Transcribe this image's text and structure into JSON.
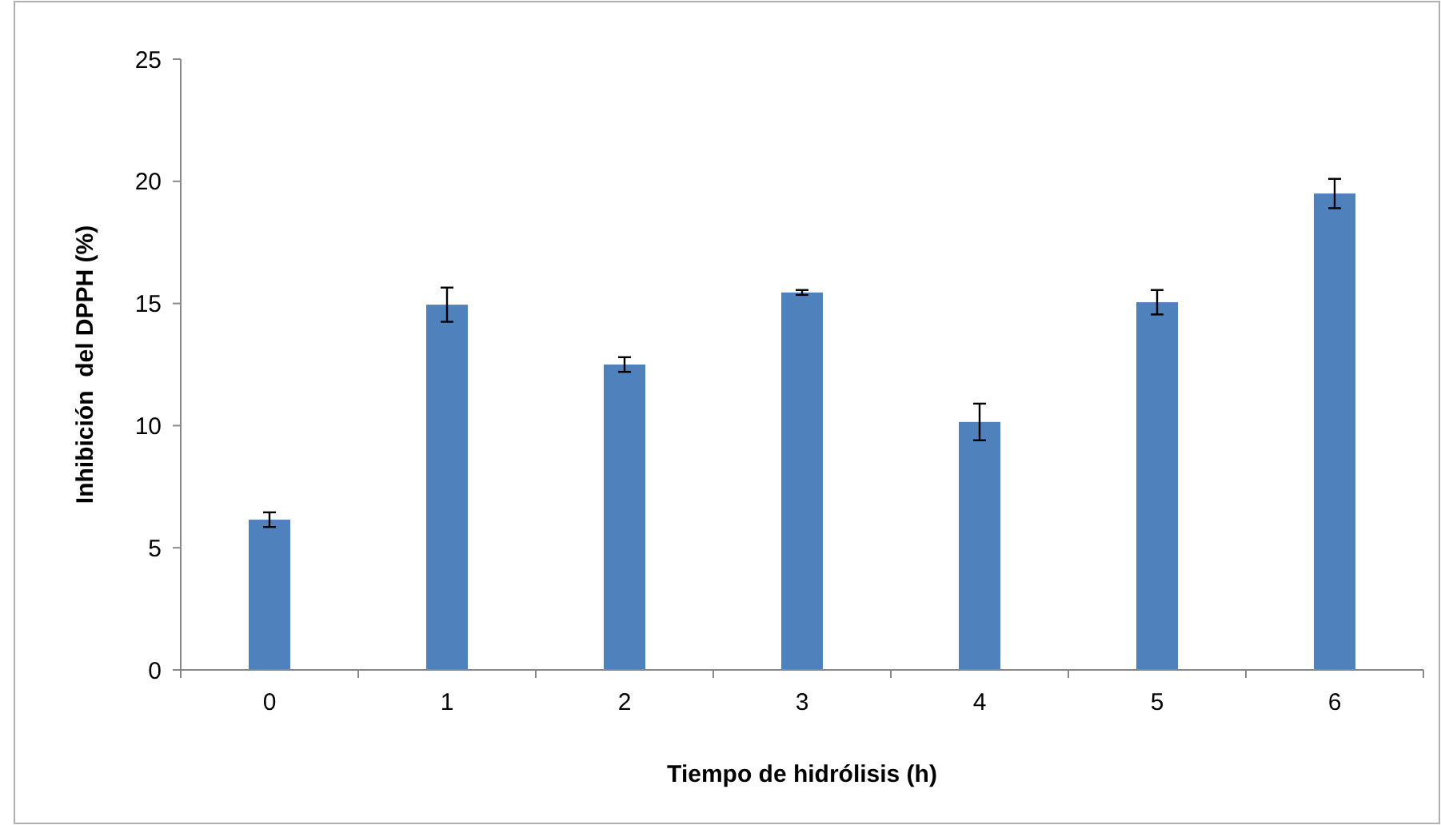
{
  "chart_data": {
    "type": "bar",
    "xlabel": "Tiempo de hidrólisis  (h)",
    "ylabel": "Inhibición  del DPPH (%)",
    "categories": [
      "0",
      "1",
      "2",
      "3",
      "4",
      "5",
      "6"
    ],
    "values": [
      6.15,
      14.95,
      12.5,
      15.45,
      10.15,
      15.05,
      19.5
    ],
    "errors": [
      0.3,
      0.7,
      0.3,
      0.1,
      0.75,
      0.5,
      0.6
    ],
    "color": "#4f81bd",
    "ylim": [
      0,
      25
    ],
    "yticks": [
      0,
      5,
      10,
      15,
      20,
      25
    ],
    "grid": false
  }
}
